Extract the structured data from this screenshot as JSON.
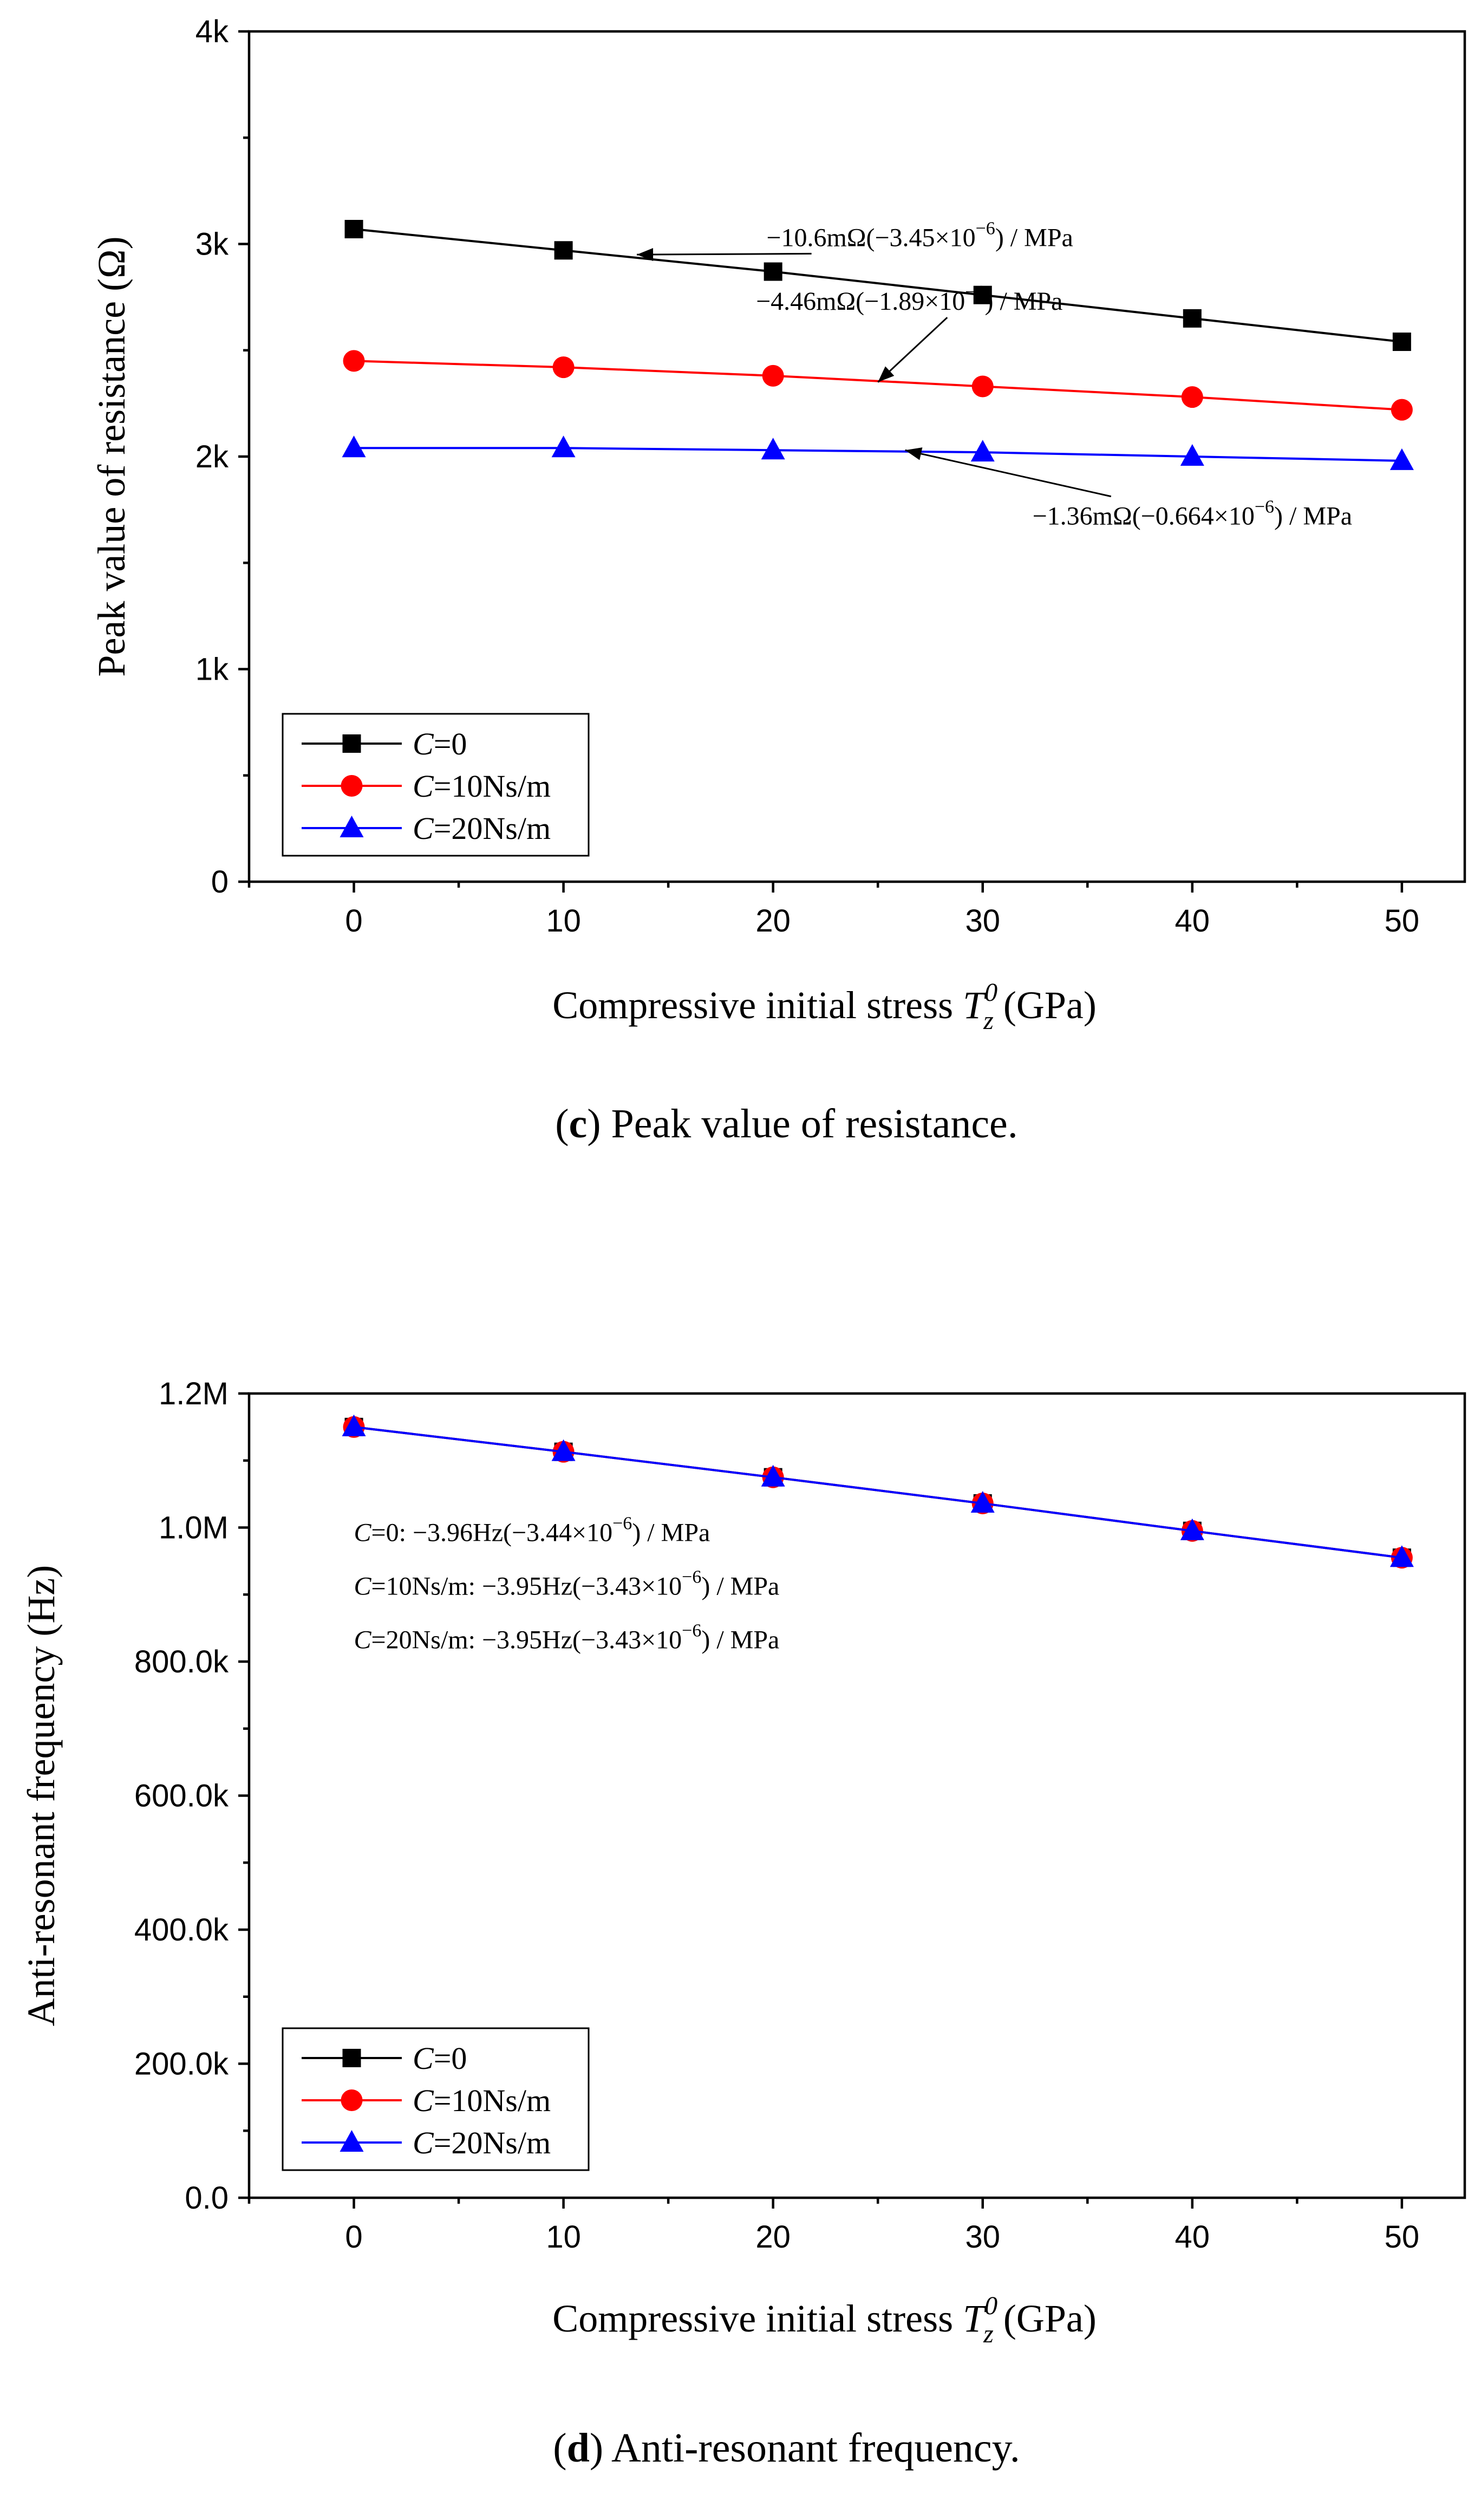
{
  "chart_data": [
    {
      "type": "line",
      "panel": "c",
      "caption_label": "c",
      "caption_text": " Peak value of resistance.",
      "ylabel": "Peak value of resistance (Ω)",
      "xlabel_prefix": "Compressive initial stress ",
      "xlabel_var": "T",
      "xlabel_sup": "0",
      "xlabel_sub": "z",
      "xlabel_suffix": " (GPa)",
      "xlim": [
        -5,
        53
      ],
      "ylim": [
        0,
        4000
      ],
      "xticks": [
        0,
        10,
        20,
        30,
        40,
        50
      ],
      "xtick_labels": [
        "0",
        "10",
        "20",
        "30",
        "40",
        "50"
      ],
      "yticks": [
        0,
        1000,
        2000,
        3000,
        4000
      ],
      "ytick_labels": [
        "0",
        "1k",
        "2k",
        "3k",
        "4k"
      ],
      "x": [
        0,
        10,
        20,
        30,
        40,
        50
      ],
      "series": [
        {
          "name": "C=0",
          "legend_var": "C",
          "legend_rest": "=0",
          "color": "#000000",
          "marker": "square",
          "values": [
            3070,
            2970,
            2870,
            2760,
            2650,
            2540
          ]
        },
        {
          "name": "C=10Ns/m",
          "legend_var": "C",
          "legend_rest": "=10Ns/m",
          "color": "#ff0000",
          "marker": "circle",
          "values": [
            2450,
            2420,
            2380,
            2330,
            2280,
            2220
          ]
        },
        {
          "name": "C=20Ns/m",
          "legend_var": "C",
          "legend_rest": "=20Ns/m",
          "color": "#0000ff",
          "marker": "triangle",
          "values": [
            2040,
            2040,
            2030,
            2020,
            2000,
            1980
          ]
        }
      ],
      "annotations": [
        {
          "text": "−10.6mΩ(−3.45×10",
          "sup": "−6",
          "tail": ") / MPa",
          "point": [
            27,
            2990
          ],
          "target": [
            13.5,
            2950
          ]
        },
        {
          "text": "−4.46mΩ(−1.89×10",
          "sup": "−6",
          "tail": ") / MPa",
          "point": [
            26.5,
            2690
          ],
          "target": [
            25,
            2350
          ]
        },
        {
          "text": "−1.36mΩ(−0.664×10",
          "sup": "−6",
          "tail": ") / MPa",
          "point": [
            40,
            1680
          ],
          "target": [
            26.3,
            2030
          ]
        }
      ]
    },
    {
      "type": "line",
      "panel": "d",
      "caption_label": "d",
      "caption_text": " Anti-resonant frequency.",
      "ylabel": "Anti-resonant frequency (Hz)",
      "xlabel_prefix": "Compressive initial stress ",
      "xlabel_var": "T",
      "xlabel_sup": "0",
      "xlabel_sub": "z",
      "xlabel_suffix": " (GPa)",
      "xlim": [
        -5,
        53
      ],
      "ylim": [
        0,
        1200000
      ],
      "xticks": [
        0,
        10,
        20,
        30,
        40,
        50
      ],
      "xtick_labels": [
        "0",
        "10",
        "20",
        "30",
        "40",
        "50"
      ],
      "yticks": [
        0,
        200000,
        400000,
        600000,
        800000,
        1000000,
        1200000
      ],
      "ytick_labels": [
        "0.0",
        "200.0k",
        "400.0k",
        "600.0k",
        "800.0k",
        "1.0M",
        "1.2M"
      ],
      "x": [
        0,
        10,
        20,
        30,
        40,
        50
      ],
      "series": [
        {
          "name": "C=0",
          "legend_var": "C",
          "legend_rest": "=0",
          "color": "#000000",
          "marker": "square",
          "values": [
            1150000,
            1113000,
            1075000,
            1036000,
            995000,
            955000
          ]
        },
        {
          "name": "C=10Ns/m",
          "legend_var": "C",
          "legend_rest": "=10Ns/m",
          "color": "#ff0000",
          "marker": "circle",
          "values": [
            1150000,
            1113000,
            1075000,
            1036000,
            995000,
            955000
          ]
        },
        {
          "name": "C=20Ns/m",
          "legend_var": "C",
          "legend_rest": "=20Ns/m",
          "color": "#0000ff",
          "marker": "triangle",
          "values": [
            1150000,
            1113000,
            1075000,
            1036000,
            995000,
            955000
          ]
        }
      ],
      "annotations": [
        {
          "var": "C",
          "text": "=0: −3.96Hz(−3.44×10",
          "sup": "−6",
          "tail": ") / MPa",
          "point": [
            0,
            980000
          ]
        },
        {
          "var": "C",
          "text": "=10Ns/m: −3.95Hz(−3.43×10",
          "sup": "−6",
          "tail": ") / MPa",
          "point": [
            0,
            900000
          ]
        },
        {
          "var": "C",
          "text": "=20Ns/m: −3.95Hz(−3.43×10",
          "sup": "−6",
          "tail": ") / MPa",
          "point": [
            0,
            820000
          ]
        }
      ]
    }
  ]
}
